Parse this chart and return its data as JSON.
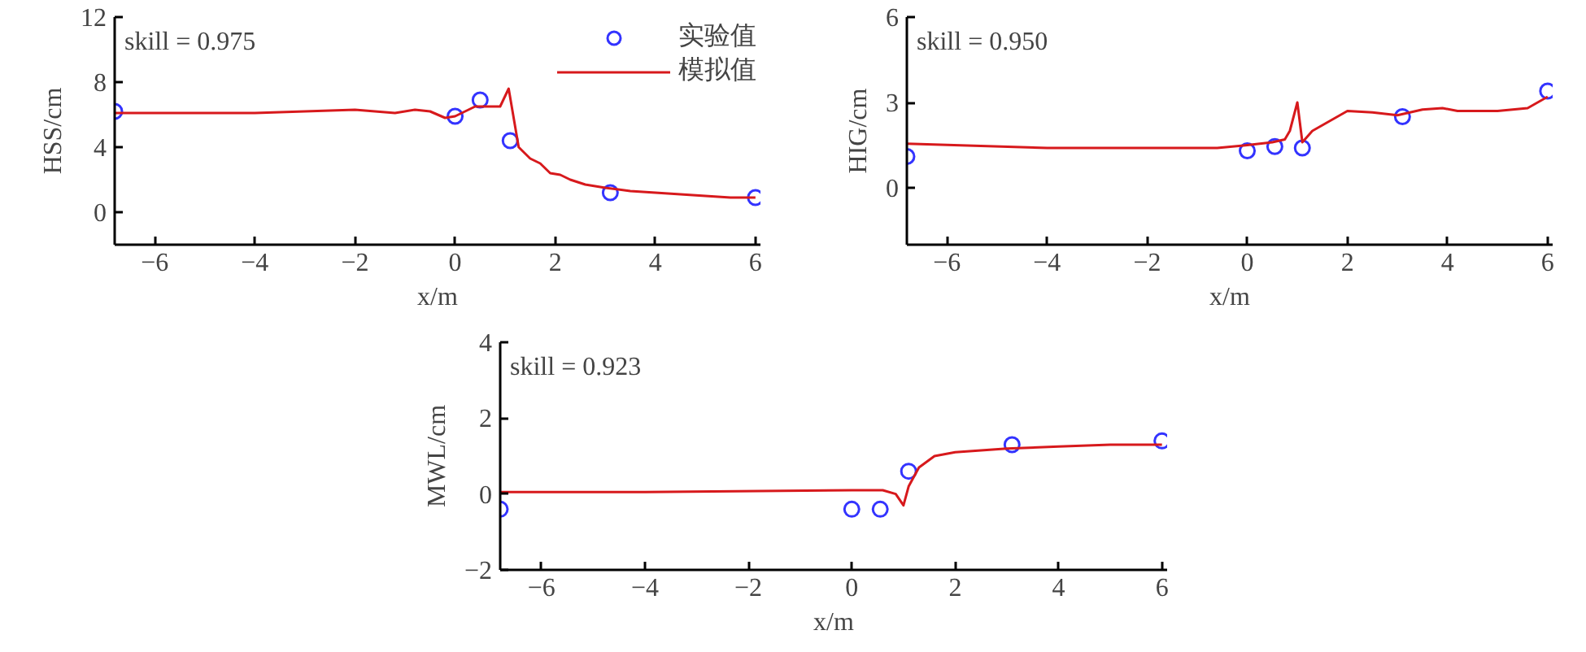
{
  "chart_data": [
    {
      "type": "line",
      "xlabel": "x/m",
      "ylabel": "HSS/cm",
      "annotations": [
        "skill = 0.975"
      ],
      "xlim": [
        -6.8,
        6.1
      ],
      "xticks": [
        -6,
        -4,
        -2,
        0,
        2,
        4,
        6
      ],
      "ylim": [
        -2,
        12
      ],
      "yticks": [
        0,
        4,
        8,
        12
      ],
      "grid": false,
      "legend": "top right",
      "series": [
        {
          "name": "实验值",
          "type": "scatter",
          "marker": "circle",
          "color": "#3333ff",
          "x": [
            -6.8,
            0,
            0.5,
            1.1,
            3.1,
            6
          ],
          "values": [
            6.2,
            5.9,
            6.9,
            4.4,
            1.2,
            0.9
          ]
        },
        {
          "name": "模拟值",
          "line_style": "solid",
          "color": "#d7191c",
          "x": [
            -6.8,
            -4,
            -2,
            -1.2,
            -0.8,
            -0.5,
            -0.2,
            0,
            0.4,
            0.6,
            0.9,
            1.07,
            1.27,
            1.5,
            1.7,
            1.9,
            2.1,
            2.3,
            2.6,
            3,
            3.5,
            4,
            4.5,
            5,
            5.5,
            6
          ],
          "values": [
            6.1,
            6.1,
            6.3,
            6.1,
            6.3,
            6.2,
            5.8,
            5.9,
            6.5,
            6.5,
            6.5,
            7.6,
            4.0,
            3.3,
            3.0,
            2.4,
            2.3,
            2.0,
            1.7,
            1.5,
            1.3,
            1.2,
            1.1,
            1.0,
            0.9,
            0.9
          ]
        }
      ]
    },
    {
      "type": "line",
      "xlabel": "x/m",
      "ylabel": "HIG/cm",
      "annotations": [
        "skill = 0.950"
      ],
      "xlim": [
        -6.8,
        6.1
      ],
      "xticks": [
        -6,
        -4,
        -2,
        0,
        2,
        4,
        6
      ],
      "ylim": [
        -2,
        6
      ],
      "yticks": [
        0,
        3,
        6
      ],
      "grid": false,
      "series": [
        {
          "type": "scatter",
          "marker": "circle",
          "color": "#3333ff",
          "x": [
            -6.8,
            0,
            0.55,
            1.1,
            3.1,
            6
          ],
          "values": [
            1.1,
            1.3,
            1.45,
            1.4,
            2.5,
            3.4
          ]
        },
        {
          "line_style": "solid",
          "color": "#d7191c",
          "x": [
            -6.8,
            -4,
            -0.6,
            0,
            0.5,
            0.75,
            0.85,
            1.0,
            1.1,
            1.3,
            1.6,
            2.0,
            2.5,
            3,
            3.5,
            3.9,
            4.2,
            5,
            5.6,
            6
          ],
          "values": [
            1.55,
            1.4,
            1.4,
            1.5,
            1.6,
            1.7,
            2.0,
            3.0,
            1.6,
            2.0,
            2.3,
            2.7,
            2.65,
            2.55,
            2.75,
            2.8,
            2.7,
            2.7,
            2.8,
            3.2
          ]
        }
      ]
    },
    {
      "type": "line",
      "xlabel": "x/m",
      "ylabel": "MWL/cm",
      "annotations": [
        "skill = 0.923"
      ],
      "xlim": [
        -6.8,
        6.1
      ],
      "xticks": [
        -6,
        -4,
        -2,
        0,
        2,
        4,
        6
      ],
      "ylim": [
        -2,
        4
      ],
      "yticks": [
        -2,
        0,
        2,
        4
      ],
      "grid": false,
      "series": [
        {
          "type": "scatter",
          "marker": "circle",
          "color": "#3333ff",
          "x": [
            -6.8,
            0,
            0.55,
            1.1,
            3.1,
            6
          ],
          "values": [
            -0.4,
            -0.4,
            -0.4,
            0.6,
            1.3,
            1.4
          ]
        },
        {
          "line_style": "solid",
          "color": "#d7191c",
          "x": [
            -6.8,
            -4,
            0,
            0.6,
            0.85,
            1.0,
            1.1,
            1.3,
            1.6,
            2.0,
            2.5,
            3,
            4,
            5,
            6
          ],
          "values": [
            0.05,
            0.05,
            0.1,
            0.1,
            0.0,
            -0.3,
            0.2,
            0.7,
            1.0,
            1.1,
            1.15,
            1.2,
            1.25,
            1.3,
            1.3
          ]
        }
      ]
    }
  ]
}
